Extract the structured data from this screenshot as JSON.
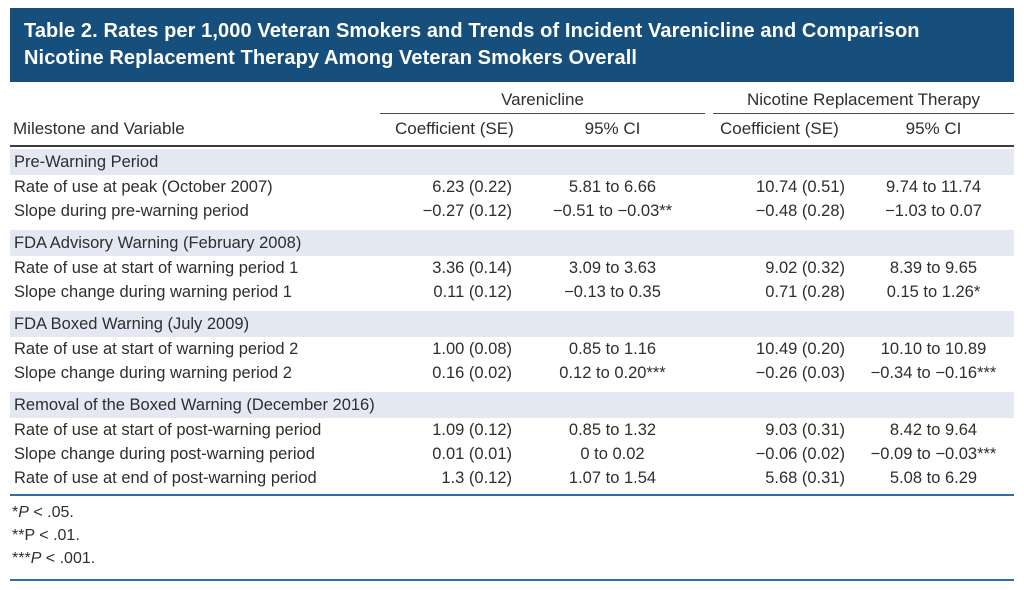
{
  "title": {
    "line1": "Table 2. Rates per 1,000 Veteran Smokers and Trends of Incident Varenicline and Comparison",
    "line2": "Nicotine Replacement Therapy Among Veteran Smokers Overall"
  },
  "columns": {
    "stub": "Milestone and Variable",
    "groups": [
      {
        "label": "Varenicline",
        "subcols": [
          "Coefficient (SE)",
          "95% CI"
        ]
      },
      {
        "label": "Nicotine Replacement Therapy",
        "subcols": [
          "Coefficient (SE)",
          "95% CI"
        ]
      }
    ]
  },
  "sections": [
    {
      "header": "Pre-Warning Period",
      "rows": [
        {
          "label": "Rate of use at peak (October 2007)",
          "values": [
            "6.23 (0.22)",
            "5.81 to 6.66",
            "10.74 (0.51)",
            "9.74 to 11.74"
          ]
        },
        {
          "label": "Slope during pre-warning period",
          "values": [
            "−0.27 (0.12)",
            "−0.51 to −0.03**",
            "−0.48 (0.28)",
            "−1.03 to 0.07"
          ]
        }
      ]
    },
    {
      "header": "FDA Advisory Warning (February 2008)",
      "rows": [
        {
          "label": "Rate of use at start of warning period 1",
          "values": [
            "3.36 (0.14)",
            "3.09 to 3.63",
            "9.02 (0.32)",
            "8.39 to 9.65"
          ]
        },
        {
          "label": "Slope change during warning period 1",
          "values": [
            "0.11 (0.12)",
            "−0.13 to 0.35",
            "0.71 (0.28)",
            "0.15 to 1.26*"
          ]
        }
      ]
    },
    {
      "header": "FDA Boxed Warning (July 2009)",
      "rows": [
        {
          "label": "Rate of use at start of warning period 2",
          "values": [
            "1.00 (0.08)",
            "0.85 to 1.16",
            "10.49 (0.20)",
            "10.10 to 10.89"
          ]
        },
        {
          "label": "Slope change during warning period 2",
          "values": [
            "0.16 (0.02)",
            "0.12 to 0.20***",
            "−0.26 (0.03)",
            "−0.34 to −0.16***"
          ]
        }
      ]
    },
    {
      "header": "Removal of the Boxed Warning (December 2016)",
      "rows": [
        {
          "label": "Rate of use at start of post-warning period",
          "values": [
            "1.09 (0.12)",
            "0.85 to 1.32",
            "9.03 (0.31)",
            "8.42 to 9.64"
          ]
        },
        {
          "label": "Slope change during post-warning period",
          "values": [
            "0.01 (0.01)",
            "0 to 0.02",
            "−0.06 (0.02)",
            "−0.09 to −0.03***"
          ]
        },
        {
          "label": "Rate of use at end of post-warning period",
          "values": [
            "1.3 (0.12)",
            "1.07 to 1.54",
            "5.68 (0.31)",
            "5.08 to 6.29"
          ]
        }
      ]
    }
  ],
  "footnotes": [
    {
      "stars": "*",
      "p": "P",
      "p_italic": true,
      "rest": " < .05."
    },
    {
      "stars": "**",
      "p": "P",
      "p_italic": false,
      "rest": " < .01."
    },
    {
      "stars": "***",
      "p": "P",
      "p_italic": true,
      "rest": " < .001."
    }
  ],
  "colors": {
    "title_bar": "#164f7c",
    "section_band": "#e4e8f3",
    "blue_rule": "#2d6ea9",
    "header_rule": "#3b3b3b",
    "text": "#2e2e2e"
  }
}
